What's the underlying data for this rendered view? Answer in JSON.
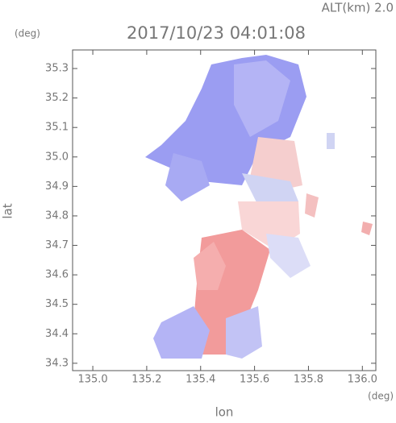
{
  "chart_data": {
    "type": "map",
    "title": "2017/10/23 04:01:08",
    "annotation": "ALT(km)  2.0",
    "y_unit": "(deg)",
    "x_unit": "(deg)",
    "x_label": "lon",
    "y_label": "lat",
    "xlim": [
      134.925,
      136.05
    ],
    "ylim": [
      34.275,
      35.363
    ],
    "xticks": [
      {
        "value": 135,
        "label": "135.0"
      },
      135.2,
      135.4,
      135.6,
      135.8,
      {
        "value": 136,
        "label": "136.0"
      }
    ],
    "yticks": [
      34.3,
      34.4,
      34.5,
      34.6,
      34.7,
      34.8,
      34.9,
      {
        "value": 35,
        "label": "35.0"
      },
      35.1,
      35.2,
      35.3
    ]
  }
}
